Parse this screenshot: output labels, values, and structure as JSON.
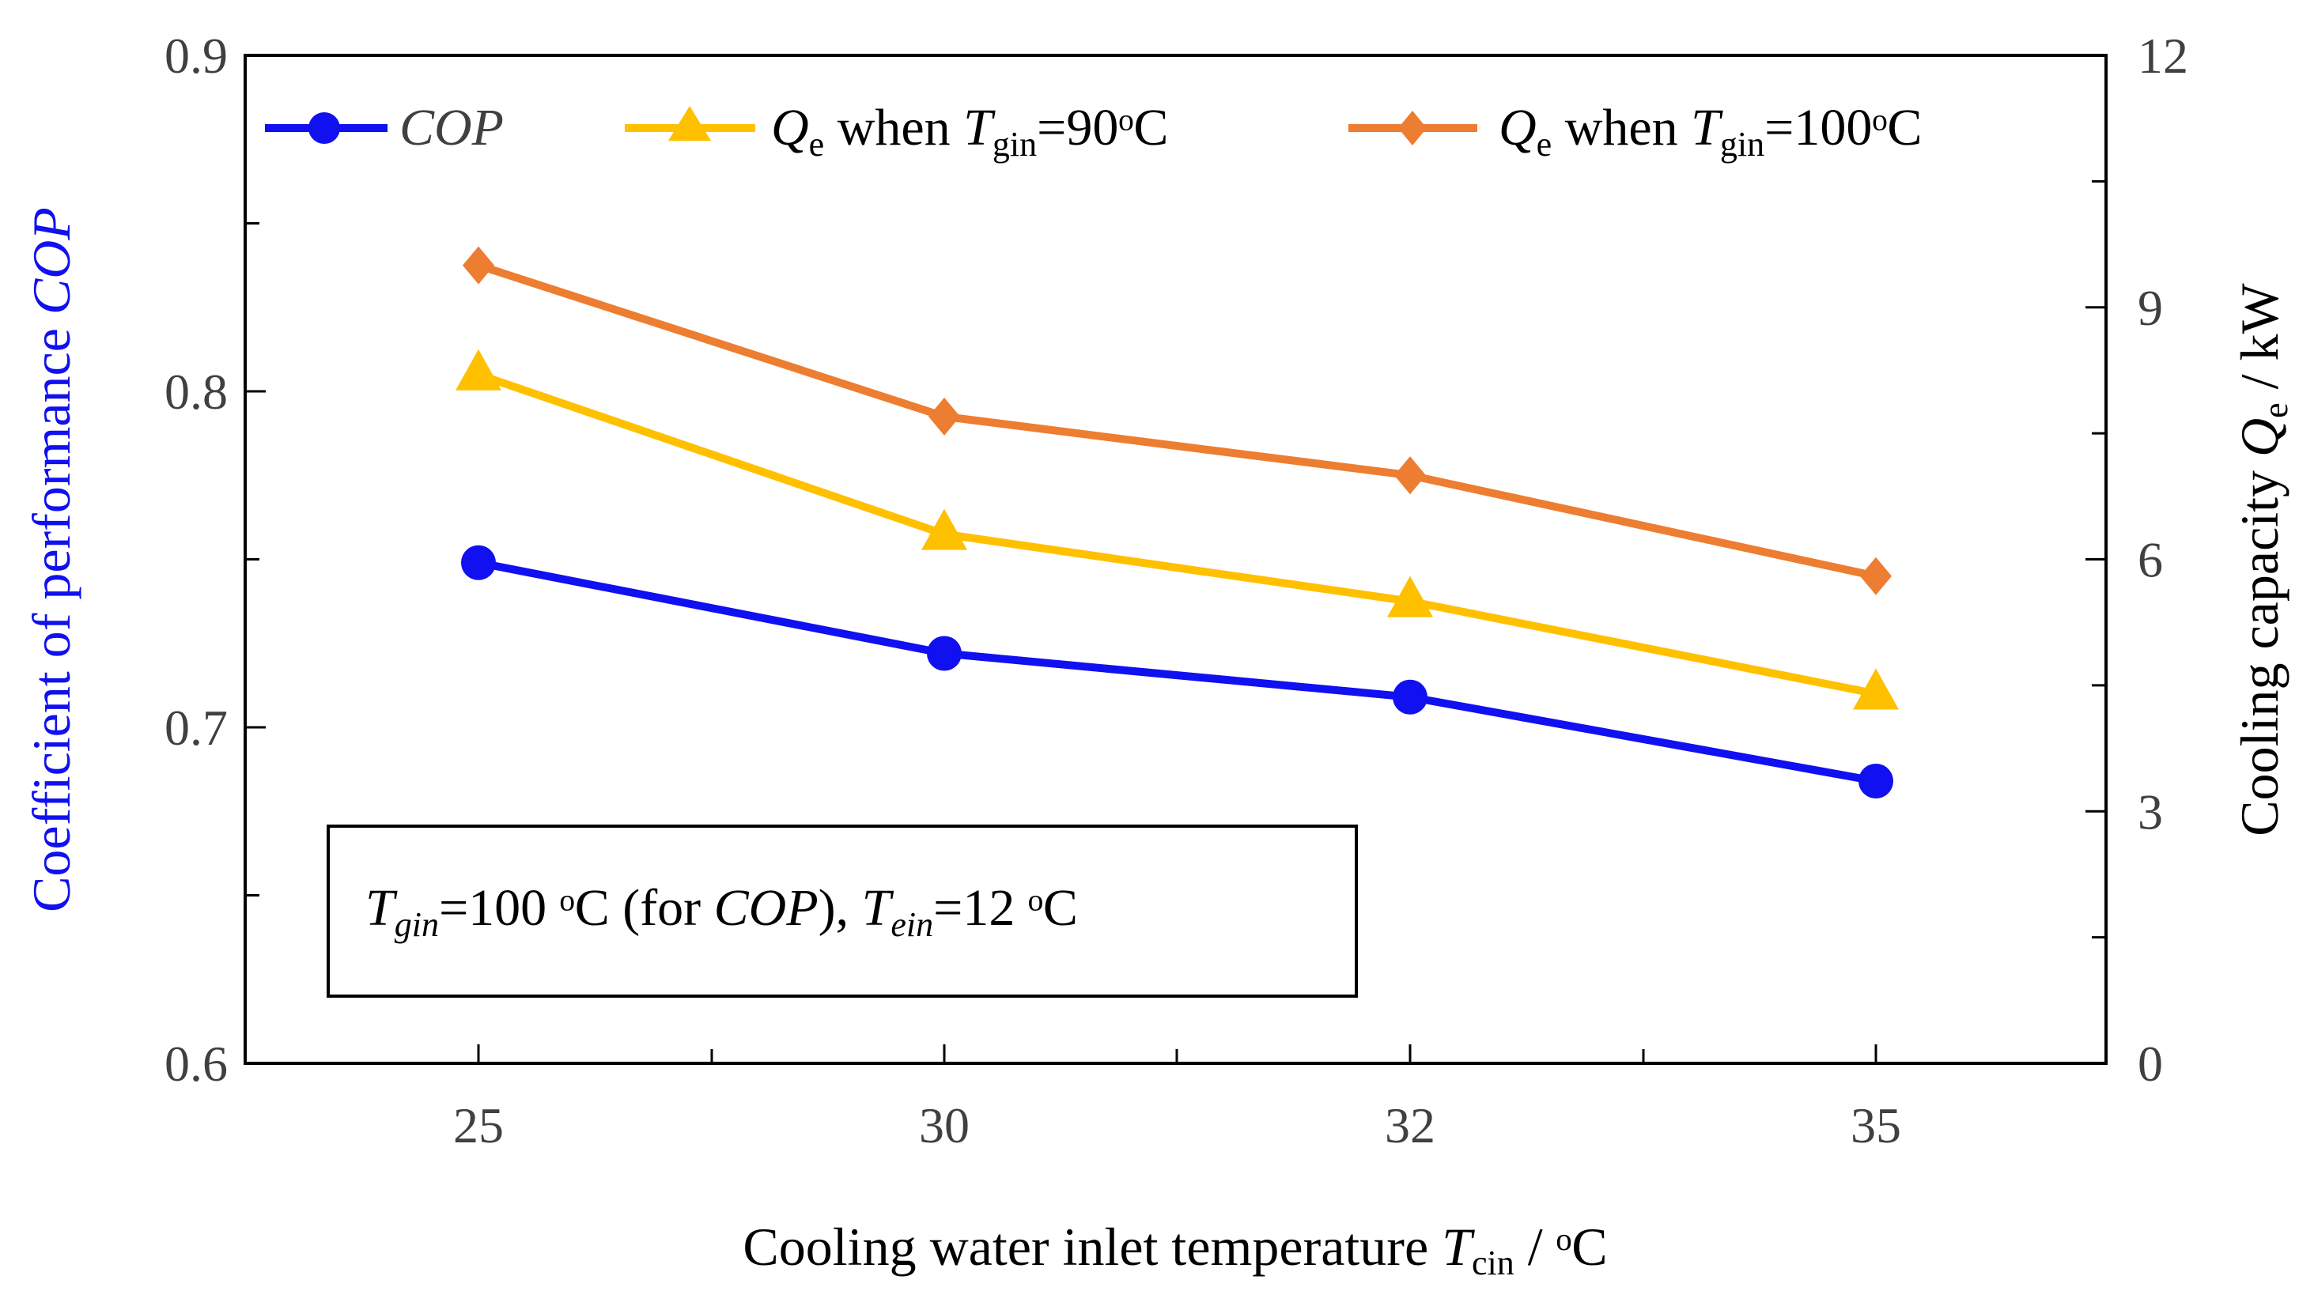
{
  "colors": {
    "cop": "#1010f0",
    "qe90": "#ffc000",
    "qe100": "#ed7d31",
    "axis": "#000000",
    "text": "#404040",
    "leftLabel": "#1010f0"
  },
  "legend": {
    "cop": "COP",
    "qe90": {
      "q": "Q",
      "qsub": "e",
      "when": " when ",
      "t": "T",
      "tsub": "gin",
      "value": "=90ᵒC"
    },
    "qe100": {
      "q": "Q",
      "qsub": "e",
      "when": " when ",
      "t": "T",
      "tsub": "gin",
      "value": "=100ᵒC"
    }
  },
  "annotation": {
    "t1": "T",
    "t1sub": "gin",
    "v1": "=100 ᵒC (for ",
    "cop": "COP",
    "close": "), ",
    "t2": "T",
    "t2sub": "ein",
    "v2": "=12 ᵒC"
  },
  "axes": {
    "xlabel": {
      "main": "Cooling water inlet temperature ",
      "t": "T",
      "tsub": "cin",
      "unit": " / ᵒC"
    },
    "ylabel_left": {
      "main": "Coefficient of performance ",
      "italic": "COP"
    },
    "ylabel_right": {
      "main": "Cooling capacity ",
      "q": "Q",
      "qsub": "e",
      "unit": " / kW"
    }
  },
  "chart_data": {
    "type": "line",
    "categories": [
      "25",
      "30",
      "32",
      "35"
    ],
    "y_left": {
      "min": 0.6,
      "max": 0.9,
      "ticks": [
        "0.6",
        "0.7",
        "0.8",
        "0.9"
      ],
      "tickValues": [
        0.6,
        0.7,
        0.8,
        0.9
      ]
    },
    "y_right": {
      "min": 0,
      "max": 12,
      "ticks": [
        "0",
        "3",
        "6",
        "9",
        "12"
      ],
      "tickValues": [
        0,
        3,
        6,
        9,
        12
      ]
    },
    "series": [
      {
        "name": "COP",
        "axis": "left",
        "marker": "circle",
        "color": "#1010f0",
        "values": [
          0.749,
          0.722,
          0.709,
          0.684
        ]
      },
      {
        "name": "Qe when Tgin=90°C",
        "axis": "right",
        "marker": "triangle",
        "color": "#ffc000",
        "values": [
          8.2,
          6.3,
          5.5,
          4.4
        ]
      },
      {
        "name": "Qe when Tgin=100°C",
        "axis": "right",
        "marker": "diamond",
        "color": "#ed7d31",
        "values": [
          9.5,
          7.7,
          7.0,
          5.8
        ]
      }
    ],
    "grid": false,
    "legend_position": "top"
  }
}
